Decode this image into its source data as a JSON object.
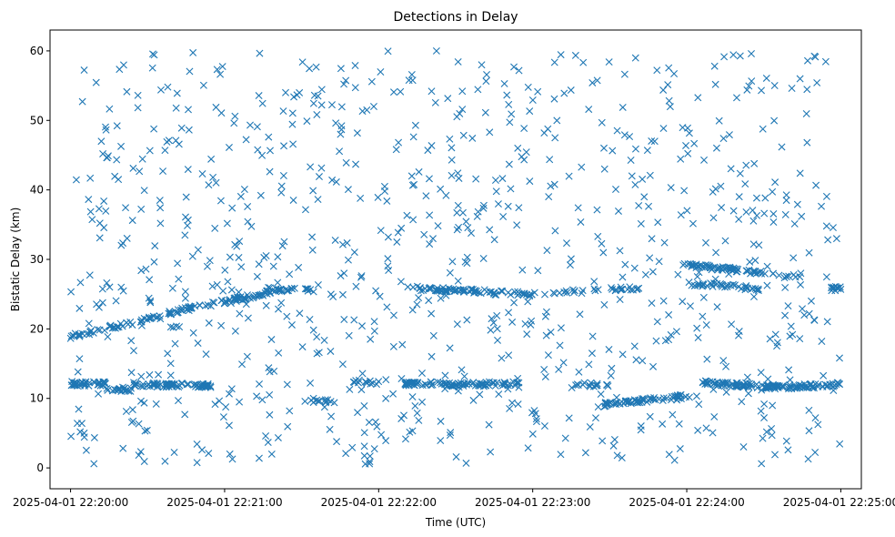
{
  "chart_data": {
    "type": "scatter",
    "title": "Detections in Delay",
    "xlabel": "Time (UTC)",
    "ylabel": "Bistatic Delay (km)",
    "marker": "x",
    "color": "#1f77b4",
    "grid": false,
    "x_unit": "seconds after 2025-04-01 22:20:00",
    "xlim": [
      -8,
      308
    ],
    "ylim": [
      -3,
      63
    ],
    "x_ticks": [
      {
        "value": 0,
        "label": "2025-04-01 22:20:00"
      },
      {
        "value": 60,
        "label": "2025-04-01 22:21:00"
      },
      {
        "value": 120,
        "label": "2025-04-01 22:22:00"
      },
      {
        "value": 180,
        "label": "2025-04-01 22:23:00"
      },
      {
        "value": 240,
        "label": "2025-04-01 22:24:00"
      },
      {
        "value": 300,
        "label": "2025-04-01 22:25:00"
      }
    ],
    "y_ticks": [
      {
        "value": 0,
        "label": "0"
      },
      {
        "value": 10,
        "label": "10"
      },
      {
        "value": 20,
        "label": "20"
      },
      {
        "value": 30,
        "label": "30"
      },
      {
        "value": 40,
        "label": "40"
      },
      {
        "value": 50,
        "label": "50"
      },
      {
        "value": 60,
        "label": "60"
      }
    ],
    "track_segments": [
      {
        "x": [
          0,
          14
        ],
        "y": [
          12.1,
          12.1
        ],
        "n": 40
      },
      {
        "x": [
          14,
          24
        ],
        "y": [
          11.3,
          11.3
        ],
        "n": 20
      },
      {
        "x": [
          24,
          55
        ],
        "y": [
          12.0,
          11.8
        ],
        "n": 70
      },
      {
        "x": [
          90,
          103
        ],
        "y": [
          9.8,
          9.6
        ],
        "n": 12
      },
      {
        "x": [
          110,
          120
        ],
        "y": [
          12.4,
          12.2
        ],
        "n": 12
      },
      {
        "x": [
          130,
          175
        ],
        "y": [
          12.1,
          12.1
        ],
        "n": 90
      },
      {
        "x": [
          195,
          210
        ],
        "y": [
          12.0,
          12.0
        ],
        "n": 15
      },
      {
        "x": [
          205,
          245
        ],
        "y": [
          9.0,
          10.5
        ],
        "n": 70
      },
      {
        "x": [
          245,
          275
        ],
        "y": [
          12.3,
          11.6
        ],
        "n": 70
      },
      {
        "x": [
          270,
          300
        ],
        "y": [
          11.5,
          12.0
        ],
        "n": 60
      },
      {
        "x": [
          0,
          35
        ],
        "y": [
          18.8,
          21.8
        ],
        "n": 45
      },
      {
        "x": [
          38,
          85
        ],
        "y": [
          22.3,
          25.8
        ],
        "n": 80
      },
      {
        "x": [
          75,
          95
        ],
        "y": [
          25.7,
          25.5
        ],
        "n": 20
      },
      {
        "x": [
          135,
          165
        ],
        "y": [
          25.8,
          25.3
        ],
        "n": 60
      },
      {
        "x": [
          165,
          180
        ],
        "y": [
          25.2,
          25.0
        ],
        "n": 20
      },
      {
        "x": [
          180,
          225
        ],
        "y": [
          25.0,
          26.0
        ],
        "n": 30
      },
      {
        "x": [
          238,
          260
        ],
        "y": [
          29.2,
          28.5
        ],
        "n": 50
      },
      {
        "x": [
          240,
          268
        ],
        "y": [
          26.6,
          25.8
        ],
        "n": 40
      },
      {
        "x": [
          260,
          285
        ],
        "y": [
          28.4,
          27.6
        ],
        "n": 20
      },
      {
        "x": [
          296,
          300
        ],
        "y": [
          25.8,
          25.8
        ],
        "n": 12
      }
    ],
    "scattered_points": {
      "n": 900,
      "x_range": [
        0,
        300
      ],
      "y_range": [
        0.5,
        60
      ]
    }
  }
}
